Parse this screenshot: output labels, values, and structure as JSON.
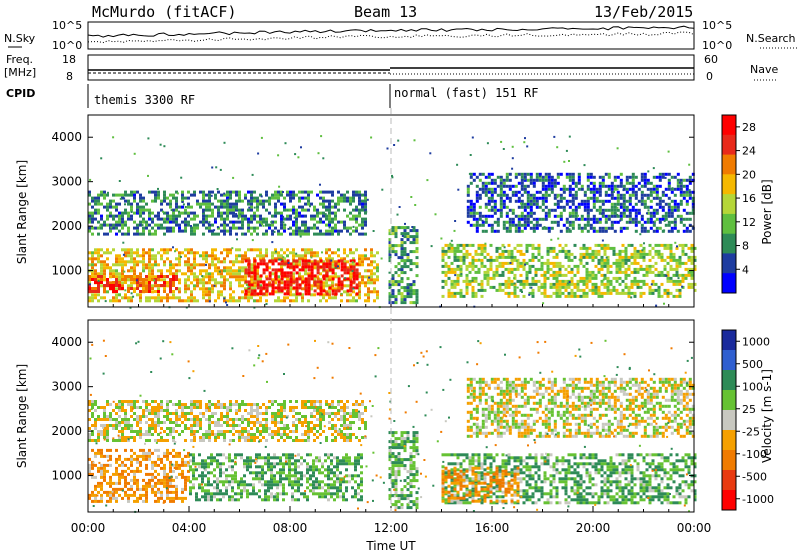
{
  "header": {
    "station": "McMurdo (fitACF)",
    "beam": "Beam 13",
    "date": "13/Feb/2015"
  },
  "top_panels": {
    "nsky_label": "N.Sky",
    "nsky_ticks": [
      "10^5",
      "10^0"
    ],
    "nsearch_label": "N.Search",
    "nsearch_ticks": [
      "10^5",
      "10^0"
    ],
    "freq_label_1": "Freq.",
    "freq_label_2": "[MHz]",
    "freq_ticks": [
      "18",
      "8"
    ],
    "nave_label": "Nave",
    "nave_ticks": [
      "60",
      "0"
    ],
    "cpid_label": "CPID",
    "cpid_segments": [
      "themis 3300 RF",
      "normal (fast) 151 RF"
    ]
  },
  "colors": {
    "power_scale": [
      "#0000ff",
      "#1e3ca0",
      "#2e8b57",
      "#5fbf3f",
      "#b5d638",
      "#f5b800",
      "#f07b00",
      "#e8291a",
      "#ff0000"
    ],
    "velocity_scale": [
      "#1a2a9c",
      "#2f5fd0",
      "#2e8b57",
      "#66c233",
      "#c8c8c0",
      "#f5a000",
      "#f07b00",
      "#e83a10",
      "#ff0000"
    ]
  },
  "chart_data": [
    {
      "type": "heatmap",
      "quantity": "Power",
      "ylabel": "Slant Range [km]",
      "ylim": [
        180,
        4500
      ],
      "yticks": [
        "1000",
        "2000",
        "3000",
        "4000"
      ],
      "xlim": [
        0,
        24
      ],
      "colorbar_label": "Power [dB]",
      "colorbar_ticks": [
        "4",
        "8",
        "12",
        "16",
        "20",
        "24",
        "28"
      ],
      "colorbar_range": [
        0,
        30
      ],
      "echo_regions": [
        {
          "t0": 0.0,
          "t1": 11.5,
          "r0": 350,
          "r1": 1500,
          "value": 18
        },
        {
          "t0": 6.2,
          "t1": 10.6,
          "r0": 500,
          "r1": 1250,
          "value": 28
        },
        {
          "t0": 0.0,
          "t1": 3.5,
          "r0": 550,
          "r1": 900,
          "value": 24
        },
        {
          "t0": 0.0,
          "t1": 11.0,
          "r0": 1800,
          "r1": 2800,
          "value": 8
        },
        {
          "t0": 11.9,
          "t1": 13.0,
          "r0": 300,
          "r1": 2000,
          "value": 10
        },
        {
          "t0": 14.0,
          "t1": 24.0,
          "r0": 400,
          "r1": 1600,
          "value": 14
        },
        {
          "t0": 15.0,
          "t1": 24.0,
          "r0": 1900,
          "r1": 3200,
          "value": 6
        }
      ]
    },
    {
      "type": "heatmap",
      "quantity": "Velocity",
      "ylabel": "Slant Range [km]",
      "ylim": [
        180,
        4500
      ],
      "yticks": [
        "1000",
        "2000",
        "3000",
        "4000"
      ],
      "xlim": [
        0,
        24
      ],
      "xlabel": "Time UT",
      "xticks": [
        "00:00",
        "04:00",
        "08:00",
        "12:00",
        "16:00",
        "20:00",
        "00:00"
      ],
      "colorbar_label": "Velocity [m s-1]",
      "colorbar_ticks": [
        "1000",
        "500",
        "100",
        "25",
        "-25",
        "-100",
        "-500",
        "-1000"
      ],
      "echo_regions": [
        {
          "t0": 0.0,
          "t1": 4.0,
          "r0": 400,
          "r1": 1600,
          "value": -100
        },
        {
          "t0": 4.0,
          "t1": 10.8,
          "r0": 450,
          "r1": 1500,
          "value": 100
        },
        {
          "t0": 0.0,
          "t1": 11.0,
          "r0": 1800,
          "r1": 2700,
          "value": 0
        },
        {
          "t0": 11.9,
          "t1": 13.0,
          "r0": 300,
          "r1": 2000,
          "value": 100
        },
        {
          "t0": 14.0,
          "t1": 24.0,
          "r0": 400,
          "r1": 1500,
          "value": 100
        },
        {
          "t0": 14.0,
          "t1": 17.0,
          "r0": 400,
          "r1": 1200,
          "value": -100
        },
        {
          "t0": 15.0,
          "t1": 24.0,
          "r0": 1900,
          "r1": 3200,
          "value": 0
        }
      ]
    }
  ]
}
